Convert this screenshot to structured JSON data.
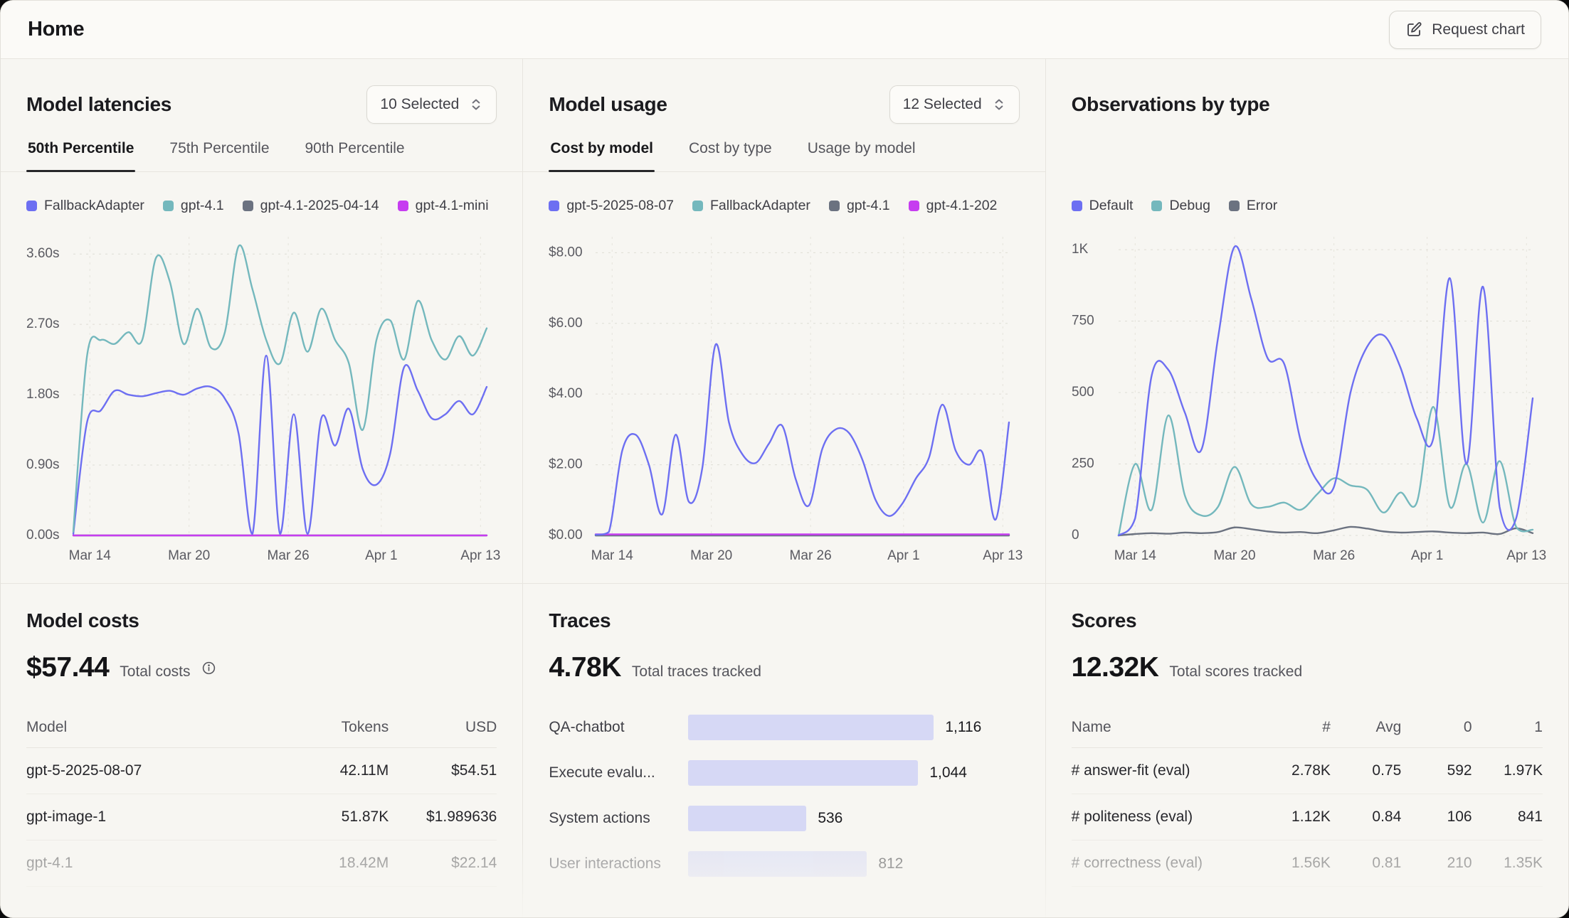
{
  "header": {
    "title": "Home",
    "request_chart": "Request chart"
  },
  "panels": {
    "latencies": {
      "title": "Model latencies",
      "selector": "10 Selected",
      "tabs": [
        "50th Percentile",
        "75th Percentile",
        "90th Percentile"
      ]
    },
    "usage": {
      "title": "Model usage",
      "selector": "12 Selected",
      "tabs": [
        "Cost by model",
        "Cost by type",
        "Usage by model"
      ]
    },
    "observations": {
      "title": "Observations by type"
    }
  },
  "chart_data": [
    {
      "type": "line",
      "name": "Model latencies — 50th Percentile",
      "ylim": [
        0,
        3.82
      ],
      "y_ticks": [
        {
          "label": "0.00s",
          "value": 0
        },
        {
          "label": "0.90s",
          "value": 0.9
        },
        {
          "label": "1.80s",
          "value": 1.8
        },
        {
          "label": "2.70s",
          "value": 2.7
        },
        {
          "label": "3.60s",
          "value": 3.6
        }
      ],
      "x_ticks": [
        {
          "label": "Mar 14",
          "pos": 0.04
        },
        {
          "label": "Mar 20",
          "pos": 0.28
        },
        {
          "label": "Mar 26",
          "pos": 0.52
        },
        {
          "label": "Apr 1",
          "pos": 0.745
        },
        {
          "label": "Apr 13",
          "pos": 0.985
        }
      ],
      "series": [
        {
          "name": "FallbackAdapter",
          "color": "#6d6ff2",
          "values": [
            0.02,
            1.45,
            1.6,
            1.85,
            1.8,
            1.78,
            1.82,
            1.85,
            1.8,
            1.88,
            1.9,
            1.75,
            1.3,
            0.02,
            2.3,
            0.02,
            1.55,
            0.02,
            1.5,
            1.15,
            1.62,
            0.85,
            0.65,
            1.05,
            2.15,
            1.85,
            1.5,
            1.55,
            1.72,
            1.55,
            1.9
          ]
        },
        {
          "name": "gpt-4.1",
          "color": "#74b8bd",
          "values": [
            0.05,
            2.3,
            2.5,
            2.45,
            2.6,
            2.5,
            3.55,
            3.25,
            2.45,
            2.9,
            2.4,
            2.6,
            3.7,
            3.15,
            2.5,
            2.2,
            2.85,
            2.35,
            2.9,
            2.5,
            2.2,
            1.35,
            2.5,
            2.75,
            2.25,
            3.0,
            2.5,
            2.25,
            2.55,
            2.3,
            2.65
          ]
        },
        {
          "name": "gpt-4.1-2025-04-14",
          "color": "#6b7280",
          "values": [
            0,
            0
          ]
        },
        {
          "name": "gpt-4.1-mini",
          "color": "#c63df0",
          "values": [
            0,
            0
          ]
        }
      ]
    },
    {
      "type": "line",
      "name": "Model usage — Cost by model",
      "ylim": [
        0,
        8.45
      ],
      "y_ticks": [
        {
          "label": "$0.00",
          "value": 0
        },
        {
          "label": "$2.00",
          "value": 2
        },
        {
          "label": "$4.00",
          "value": 4
        },
        {
          "label": "$6.00",
          "value": 6
        },
        {
          "label": "$8.00",
          "value": 8
        }
      ],
      "x_ticks": [
        {
          "label": "Mar 14",
          "pos": 0.04
        },
        {
          "label": "Mar 20",
          "pos": 0.28
        },
        {
          "label": "Mar 26",
          "pos": 0.52
        },
        {
          "label": "Apr 1",
          "pos": 0.745
        },
        {
          "label": "Apr 13",
          "pos": 0.985
        }
      ],
      "series": [
        {
          "name": "gpt-5-2025-08-07",
          "color": "#6d6ff2",
          "values": [
            0.02,
            0.1,
            2.4,
            2.85,
            2.0,
            0.6,
            2.85,
            0.95,
            1.9,
            5.4,
            3.2,
            2.3,
            2.05,
            2.6,
            3.1,
            1.6,
            0.85,
            2.45,
            3.0,
            2.9,
            2.15,
            1.0,
            0.55,
            0.9,
            1.6,
            2.2,
            3.7,
            2.4,
            2.0,
            2.35,
            0.45,
            3.2
          ]
        },
        {
          "name": "FallbackAdapter",
          "color": "#74b8bd",
          "values": [
            0,
            0
          ]
        },
        {
          "name": "gpt-4.1",
          "color": "#6b7280",
          "values": [
            0,
            0
          ]
        },
        {
          "name": "gpt-4.1-202",
          "color": "#c63df0",
          "values": [
            0.03,
            0.03
          ]
        }
      ]
    },
    {
      "type": "line",
      "name": "Observations by type",
      "ylim": [
        0,
        1045
      ],
      "y_ticks": [
        {
          "label": "0",
          "value": 0
        },
        {
          "label": "250",
          "value": 250
        },
        {
          "label": "500",
          "value": 500
        },
        {
          "label": "750",
          "value": 750
        },
        {
          "label": "1K",
          "value": 1000
        }
      ],
      "x_ticks": [
        {
          "label": "Mar 14",
          "pos": 0.04
        },
        {
          "label": "Mar 20",
          "pos": 0.28
        },
        {
          "label": "Mar 26",
          "pos": 0.52
        },
        {
          "label": "Apr 1",
          "pos": 0.745
        },
        {
          "label": "Apr 13",
          "pos": 0.985
        }
      ],
      "series": [
        {
          "name": "Default",
          "color": "#6d6ff2",
          "values": [
            0,
            60,
            560,
            580,
            430,
            300,
            690,
            1010,
            830,
            620,
            600,
            330,
            190,
            170,
            500,
            660,
            700,
            590,
            410,
            340,
            900,
            250,
            870,
            100,
            60,
            480
          ]
        },
        {
          "name": "Debug",
          "color": "#74b8bd",
          "values": [
            0,
            250,
            90,
            420,
            140,
            70,
            100,
            240,
            110,
            100,
            115,
            90,
            145,
            200,
            175,
            160,
            80,
            150,
            115,
            450,
            100,
            250,
            45,
            260,
            30,
            20
          ]
        },
        {
          "name": "Error",
          "color": "#6b7280",
          "values": [
            0,
            5,
            8,
            6,
            10,
            8,
            12,
            28,
            22,
            14,
            10,
            12,
            8,
            18,
            30,
            24,
            14,
            10,
            12,
            14,
            10,
            8,
            10,
            5,
            25,
            8
          ]
        }
      ]
    }
  ],
  "costs": {
    "title": "Model costs",
    "total": "$57.44",
    "total_label": "Total costs",
    "headers": [
      "Model",
      "Tokens",
      "USD"
    ],
    "rows": [
      [
        "gpt-5-2025-08-07",
        "42.11M",
        "$54.51"
      ],
      [
        "gpt-image-1",
        "51.87K",
        "$1.989636"
      ],
      [
        "gpt-4.1",
        "18.42M",
        "$22.14"
      ]
    ]
  },
  "traces": {
    "title": "Traces",
    "total": "4.78K",
    "total_label": "Total traces tracked",
    "bar_color": "#d6d8f5",
    "bars": [
      {
        "label": "QA-chatbot",
        "value": 1116,
        "display": "1,116"
      },
      {
        "label": "Execute evalu...",
        "value": 1044,
        "display": "1,044"
      },
      {
        "label": "System actions",
        "value": 536,
        "display": "536"
      },
      {
        "label": "User interactions",
        "value": 812,
        "display": "812"
      }
    ]
  },
  "scores": {
    "title": "Scores",
    "total": "12.32K",
    "total_label": "Total scores tracked",
    "headers": [
      "Name",
      "#",
      "Avg",
      "0",
      "1"
    ],
    "rows": [
      [
        "# answer-fit (eval)",
        "2.78K",
        "0.75",
        "592",
        "1.97K"
      ],
      [
        "# politeness (eval)",
        "1.12K",
        "0.84",
        "106",
        "841"
      ],
      [
        "# correctness (eval)",
        "1.56K",
        "0.81",
        "210",
        "1.35K"
      ]
    ]
  }
}
